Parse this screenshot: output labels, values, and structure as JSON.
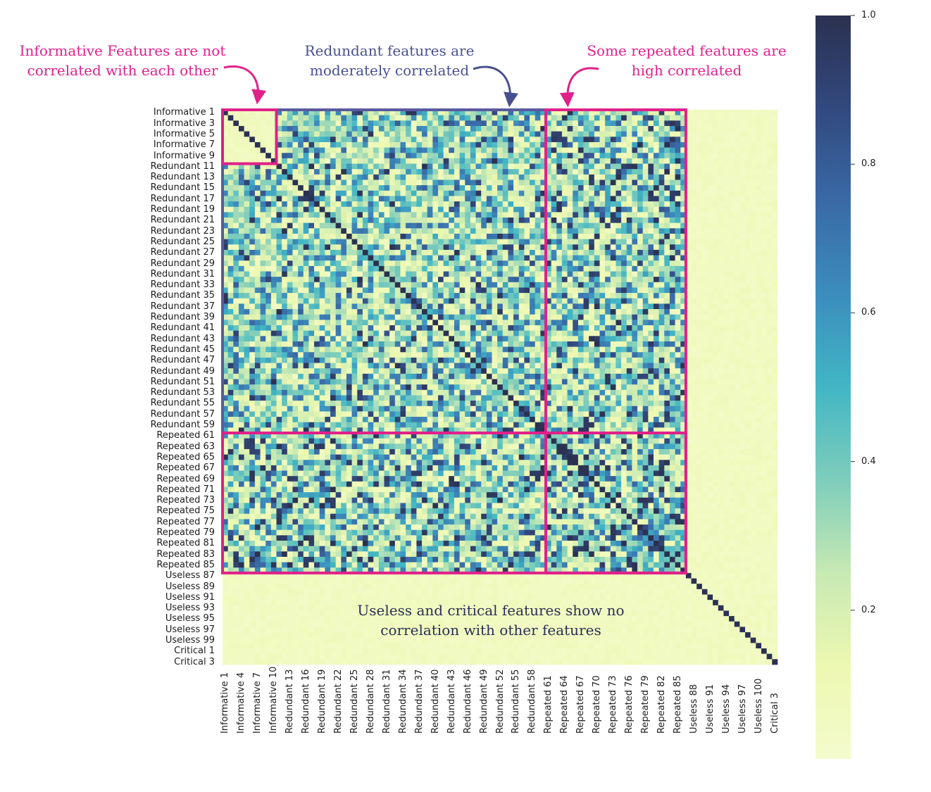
{
  "chart_data": {
    "type": "heatmap",
    "title": "",
    "xlabel": "",
    "ylabel": "",
    "colormap": "YlGnBu",
    "color_range": [
      0.0,
      1.0
    ],
    "colorbar_ticks": [
      "0.2",
      "0.4",
      "0.6",
      "0.8",
      "1.0"
    ],
    "groups": [
      {
        "name": "Informative",
        "count": 10
      },
      {
        "name": "Redundant",
        "start_index": 11,
        "end_index": 60
      },
      {
        "name": "Repeated",
        "start_index": 61,
        "end_index": 86
      },
      {
        "name": "Useless",
        "start_index": 87,
        "end_index": 100
      },
      {
        "name": "Critical",
        "count": 3
      }
    ],
    "y_tick_labels": [
      "Informative 1",
      "Informative 3",
      "Informative 5",
      "Informative 7",
      "Informative 9",
      "Redundant 11",
      "Redundant 13",
      "Redundant 15",
      "Redundant 17",
      "Redundant 19",
      "Redundant 21",
      "Redundant 23",
      "Redundant 25",
      "Redundant 27",
      "Redundant 29",
      "Redundant 31",
      "Redundant 33",
      "Redundant 35",
      "Redundant 37",
      "Redundant 39",
      "Redundant 41",
      "Redundant 43",
      "Redundant 45",
      "Redundant 47",
      "Redundant 49",
      "Redundant 51",
      "Redundant 53",
      "Redundant 55",
      "Redundant 57",
      "Redundant 59",
      "Repeated 61",
      "Repeated 63",
      "Repeated 65",
      "Repeated 67",
      "Repeated 69",
      "Repeated 71",
      "Repeated 73",
      "Repeated 75",
      "Repeated 77",
      "Repeated 79",
      "Repeated 81",
      "Repeated 83",
      "Repeated 85",
      "Useless 87",
      "Useless 89",
      "Useless 91",
      "Useless 93",
      "Useless 95",
      "Useless 97",
      "Useless 99",
      "Critical 1",
      "Critical 3"
    ],
    "x_tick_labels": [
      "Informative 1",
      "Informative 4",
      "Informative 7",
      "Informative 10",
      "Redundant 13",
      "Redundant 16",
      "Redundant 19",
      "Redundant 22",
      "Redundant 25",
      "Redundant 28",
      "Redundant 31",
      "Redundant 34",
      "Redundant 37",
      "Redundant 40",
      "Redundant 43",
      "Redundant 46",
      "Redundant 49",
      "Redundant 52",
      "Redundant 55",
      "Redundant 58",
      "Repeated 61",
      "Repeated 64",
      "Repeated 67",
      "Repeated 70",
      "Repeated 73",
      "Repeated 76",
      "Repeated 79",
      "Repeated 82",
      "Repeated 85",
      "Useless 88",
      "Useless 91",
      "Useless 94",
      "Useless 97",
      "Useless 100",
      "Critical 3"
    ],
    "block_correlation": {
      "diagonal": 1.0,
      "informative_vs_informative": "~0.05",
      "redundant_vs_informative_redundant": "0.1-0.8 (moderate)",
      "repeated_vs_informative_redundant": "0.1-1.0 (some high)",
      "useless_critical_vs_all": "~0.05"
    },
    "annotations": [
      {
        "text": [
          "Informative Features are not",
          "correlated with each other"
        ],
        "color": "#e0218a"
      },
      {
        "text": [
          "Redundant features are",
          "moderately correlated"
        ],
        "color": "#47508f"
      },
      {
        "text": [
          "Some repeated features are",
          "high correlated"
        ],
        "color": "#e0218a"
      },
      {
        "text": [
          "Useless and critical features show no",
          "correlation with other features"
        ],
        "color": "#2a2f55"
      }
    ]
  }
}
